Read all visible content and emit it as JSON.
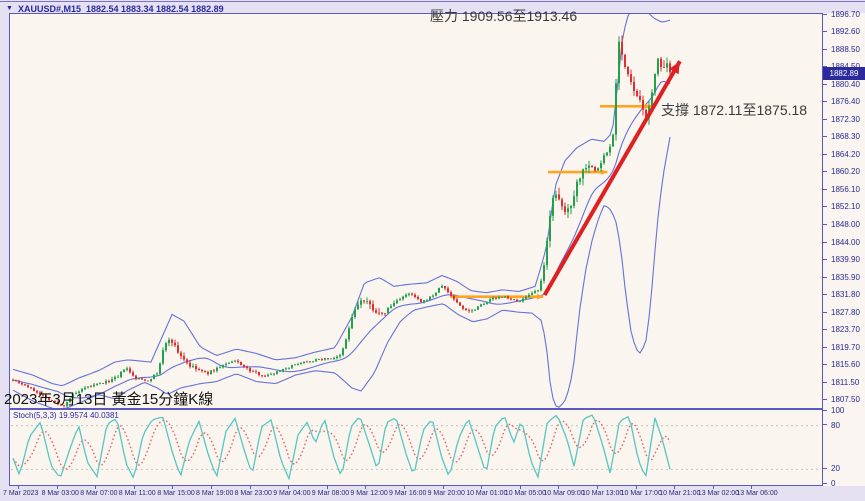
{
  "header": {
    "symbol_label": "XAUUSD#,M15",
    "ohlc_text": "1882.54 1883.34 1882.54 1882.89"
  },
  "colors": {
    "bull": "#22A04A",
    "bear": "#DD2F2F",
    "bollinger": "#6672D8",
    "stoch_k": "#58C6C0",
    "stoch_d": "#E06868",
    "stoch_level": "#C8C4BE",
    "orange": "#FFA420",
    "trend_red": "#E02020",
    "axis_text": "#2A2A8E",
    "badge_bg": "#2B2B9E",
    "plot_bg": "#FBF5EF"
  },
  "chart_data": {
    "type": "candlestick",
    "symbol": "XAUUSD#",
    "timeframe": "M15",
    "indicators": [
      "Bollinger Bands",
      "Stochastic(5,3,3)"
    ],
    "ohlc_header": [
      1882.54,
      1883.34,
      1882.54,
      1882.89
    ],
    "visible_price_range": [
      1807.5,
      1896.7
    ],
    "price_axis": {
      "current_price": "1882.89",
      "ticks": [
        1896.7,
        1892.6,
        1888.5,
        1884.5,
        1880.4,
        1876.4,
        1872.3,
        1868.3,
        1864.2,
        1860.2,
        1856.1,
        1852.1,
        1848.0,
        1844.0,
        1839.9,
        1835.9,
        1831.8,
        1827.8,
        1823.7,
        1819.7,
        1815.6,
        1811.5,
        1807.5
      ]
    },
    "time_axis": {
      "labels": [
        "7 Mar 2023",
        "8 Mar 03:00",
        "8 Mar 07:00",
        "8 Mar 11:00",
        "8 Mar 15:00",
        "8 Mar 19:00",
        "8 Mar 23:00",
        "9 Mar 04:00",
        "9 Mar 08:00",
        "9 Mar 12:00",
        "9 Mar 16:00",
        "9 Mar 20:00",
        "10 Mar 01:00",
        "10 Mar 05:00",
        "10 Mar 09:00",
        "10 Mar 13:00",
        "10 Mar 17:00",
        "10 Mar 21:00",
        "13 Mar 02:00",
        "13 Mar 06:00"
      ]
    },
    "price_path": [
      [
        0.0,
        1812.5
      ],
      [
        0.02,
        1811.0
      ],
      [
        0.045,
        1808.8
      ],
      [
        0.068,
        1806.8
      ],
      [
        0.076,
        1806.2
      ],
      [
        0.09,
        1808.8
      ],
      [
        0.115,
        1810.8
      ],
      [
        0.14,
        1811.8
      ],
      [
        0.16,
        1813.0
      ],
      [
        0.171,
        1815.3
      ],
      [
        0.185,
        1812.8
      ],
      [
        0.205,
        1812.2
      ],
      [
        0.22,
        1814.0
      ],
      [
        0.229,
        1819.5
      ],
      [
        0.239,
        1822.3
      ],
      [
        0.25,
        1819.0
      ],
      [
        0.27,
        1815.5
      ],
      [
        0.295,
        1813.8
      ],
      [
        0.32,
        1815.8
      ],
      [
        0.34,
        1816.8
      ],
      [
        0.36,
        1814.5
      ],
      [
        0.385,
        1813.2
      ],
      [
        0.41,
        1814.8
      ],
      [
        0.44,
        1816.5
      ],
      [
        0.47,
        1817.2
      ],
      [
        0.497,
        1817.6
      ],
      [
        0.505,
        1820.5
      ],
      [
        0.516,
        1827.0
      ],
      [
        0.528,
        1830.8
      ],
      [
        0.545,
        1829.5
      ],
      [
        0.56,
        1827.0
      ],
      [
        0.572,
        1829.0
      ],
      [
        0.588,
        1831.2
      ],
      [
        0.605,
        1832.3
      ],
      [
        0.622,
        1830.2
      ],
      [
        0.64,
        1832.0
      ],
      [
        0.653,
        1834.2
      ],
      [
        0.667,
        1831.8
      ],
      [
        0.683,
        1829.0
      ],
      [
        0.697,
        1828.2
      ],
      [
        0.712,
        1829.8
      ],
      [
        0.73,
        1831.2
      ],
      [
        0.75,
        1831.6
      ],
      [
        0.768,
        1830.4
      ],
      [
        0.785,
        1831.8
      ],
      [
        0.8,
        1833.2
      ],
      [
        0.806,
        1836.0
      ],
      [
        0.812,
        1843.0
      ],
      [
        0.818,
        1852.0
      ],
      [
        0.823,
        1855.8
      ],
      [
        0.832,
        1853.0
      ],
      [
        0.842,
        1850.8
      ],
      [
        0.85,
        1853.5
      ],
      [
        0.858,
        1857.8
      ],
      [
        0.868,
        1861.0
      ],
      [
        0.875,
        1862.8
      ],
      [
        0.885,
        1860.5
      ],
      [
        0.893,
        1861.8
      ],
      [
        0.9,
        1864.3
      ],
      [
        0.908,
        1865.8
      ],
      [
        0.913,
        1869.0
      ],
      [
        0.917,
        1878.0
      ],
      [
        0.921,
        1892.5
      ],
      [
        0.925,
        1889.0
      ],
      [
        0.93,
        1885.5
      ],
      [
        0.937,
        1882.0
      ],
      [
        0.944,
        1879.5
      ],
      [
        0.952,
        1877.0
      ],
      [
        0.96,
        1874.5
      ],
      [
        0.964,
        1873.5
      ],
      [
        0.97,
        1875.5
      ],
      [
        0.977,
        1883.0
      ],
      [
        0.98,
        1888.3
      ],
      [
        0.985,
        1885.0
      ],
      [
        0.99,
        1883.5
      ],
      [
        0.995,
        1885.0
      ],
      [
        1.0,
        1882.9
      ]
    ],
    "bollinger_upper": [
      [
        0.0,
        1814.8
      ],
      [
        0.03,
        1813.5
      ],
      [
        0.06,
        1811.5
      ],
      [
        0.075,
        1811.0
      ],
      [
        0.1,
        1812.8
      ],
      [
        0.13,
        1814.5
      ],
      [
        0.155,
        1816.5
      ],
      [
        0.175,
        1817.0
      ],
      [
        0.21,
        1816.5
      ],
      [
        0.229,
        1823.0
      ],
      [
        0.242,
        1827.5
      ],
      [
        0.26,
        1826.0
      ],
      [
        0.285,
        1820.0
      ],
      [
        0.31,
        1818.0
      ],
      [
        0.34,
        1819.5
      ],
      [
        0.37,
        1818.5
      ],
      [
        0.4,
        1817.0
      ],
      [
        0.43,
        1817.5
      ],
      [
        0.46,
        1818.8
      ],
      [
        0.49,
        1819.8
      ],
      [
        0.516,
        1827.0
      ],
      [
        0.535,
        1834.8
      ],
      [
        0.558,
        1836.0
      ],
      [
        0.58,
        1834.0
      ],
      [
        0.605,
        1834.5
      ],
      [
        0.63,
        1834.8
      ],
      [
        0.653,
        1836.5
      ],
      [
        0.675,
        1835.2
      ],
      [
        0.697,
        1833.0
      ],
      [
        0.72,
        1832.5
      ],
      [
        0.745,
        1833.2
      ],
      [
        0.77,
        1832.8
      ],
      [
        0.795,
        1834.0
      ],
      [
        0.812,
        1843.0
      ],
      [
        0.825,
        1857.0
      ],
      [
        0.84,
        1863.0
      ],
      [
        0.858,
        1866.0
      ],
      [
        0.88,
        1868.0
      ],
      [
        0.9,
        1867.5
      ],
      [
        0.912,
        1869.5
      ],
      [
        0.92,
        1880.0
      ],
      [
        0.928,
        1892.0
      ],
      [
        0.938,
        1897.5
      ],
      [
        0.95,
        1898.8
      ],
      [
        0.962,
        1898.0
      ],
      [
        0.975,
        1896.0
      ],
      [
        0.988,
        1895.0
      ],
      [
        1.0,
        1895.5
      ]
    ],
    "bollinger_lower": [
      [
        0.0,
        1810.0
      ],
      [
        0.03,
        1807.5
      ],
      [
        0.06,
        1805.8
      ],
      [
        0.075,
        1805.5
      ],
      [
        0.1,
        1807.0
      ],
      [
        0.13,
        1809.0
      ],
      [
        0.155,
        1808.0
      ],
      [
        0.175,
        1810.0
      ],
      [
        0.2,
        1811.8
      ],
      [
        0.22,
        1810.5
      ],
      [
        0.235,
        1809.0
      ],
      [
        0.255,
        1810.5
      ],
      [
        0.285,
        1811.5
      ],
      [
        0.31,
        1812.0
      ],
      [
        0.34,
        1813.8
      ],
      [
        0.37,
        1812.0
      ],
      [
        0.4,
        1811.5
      ],
      [
        0.43,
        1813.5
      ],
      [
        0.46,
        1814.5
      ],
      [
        0.49,
        1814.0
      ],
      [
        0.505,
        1812.0
      ],
      [
        0.516,
        1810.5
      ],
      [
        0.53,
        1809.8
      ],
      [
        0.55,
        1814.0
      ],
      [
        0.57,
        1821.0
      ],
      [
        0.59,
        1826.0
      ],
      [
        0.61,
        1828.5
      ],
      [
        0.632,
        1829.3
      ],
      [
        0.655,
        1830.0
      ],
      [
        0.677,
        1827.5
      ],
      [
        0.7,
        1825.8
      ],
      [
        0.722,
        1826.5
      ],
      [
        0.745,
        1828.5
      ],
      [
        0.77,
        1828.0
      ],
      [
        0.79,
        1827.8
      ],
      [
        0.805,
        1826.0
      ],
      [
        0.812,
        1820.0
      ],
      [
        0.818,
        1811.0
      ],
      [
        0.824,
        1806.5
      ],
      [
        0.832,
        1806.0
      ],
      [
        0.842,
        1808.0
      ],
      [
        0.852,
        1814.0
      ],
      [
        0.862,
        1828.0
      ],
      [
        0.872,
        1838.0
      ],
      [
        0.882,
        1845.0
      ],
      [
        0.892,
        1850.0
      ],
      [
        0.9,
        1852.8
      ],
      [
        0.908,
        1852.0
      ],
      [
        0.917,
        1849.5
      ],
      [
        0.925,
        1843.0
      ],
      [
        0.932,
        1833.0
      ],
      [
        0.94,
        1824.0
      ],
      [
        0.948,
        1819.5
      ],
      [
        0.955,
        1818.5
      ],
      [
        0.963,
        1821.0
      ],
      [
        0.97,
        1829.0
      ],
      [
        0.977,
        1842.0
      ],
      [
        0.983,
        1852.0
      ],
      [
        0.99,
        1860.0
      ],
      [
        1.0,
        1868.5
      ]
    ],
    "stochastic": {
      "label": "Stoch(5,3,3)",
      "values": "19.9574 40.0381",
      "range": [
        0,
        100
      ],
      "levels": [
        80,
        20
      ],
      "axis_ticks": [
        100,
        80,
        20,
        0
      ],
      "k_path": [
        [
          0.0,
          35
        ],
        [
          0.01,
          12
        ],
        [
          0.025,
          65
        ],
        [
          0.042,
          85
        ],
        [
          0.058,
          25
        ],
        [
          0.072,
          8
        ],
        [
          0.088,
          52
        ],
        [
          0.1,
          80
        ],
        [
          0.113,
          30
        ],
        [
          0.128,
          10
        ],
        [
          0.143,
          82
        ],
        [
          0.158,
          90
        ],
        [
          0.172,
          28
        ],
        [
          0.184,
          7
        ],
        [
          0.198,
          68
        ],
        [
          0.212,
          88
        ],
        [
          0.228,
          92
        ],
        [
          0.243,
          42
        ],
        [
          0.255,
          10
        ],
        [
          0.268,
          58
        ],
        [
          0.283,
          86
        ],
        [
          0.298,
          38
        ],
        [
          0.31,
          9
        ],
        [
          0.324,
          72
        ],
        [
          0.338,
          90
        ],
        [
          0.352,
          46
        ],
        [
          0.364,
          13
        ],
        [
          0.378,
          78
        ],
        [
          0.393,
          88
        ],
        [
          0.408,
          32
        ],
        [
          0.42,
          7
        ],
        [
          0.434,
          68
        ],
        [
          0.448,
          85
        ],
        [
          0.46,
          55
        ],
        [
          0.474,
          90
        ],
        [
          0.488,
          38
        ],
        [
          0.5,
          9
        ],
        [
          0.514,
          78
        ],
        [
          0.528,
          93
        ],
        [
          0.543,
          52
        ],
        [
          0.555,
          18
        ],
        [
          0.568,
          84
        ],
        [
          0.583,
          91
        ],
        [
          0.598,
          42
        ],
        [
          0.61,
          11
        ],
        [
          0.624,
          74
        ],
        [
          0.638,
          89
        ],
        [
          0.652,
          38
        ],
        [
          0.664,
          9
        ],
        [
          0.678,
          62
        ],
        [
          0.693,
          90
        ],
        [
          0.708,
          48
        ],
        [
          0.72,
          14
        ],
        [
          0.733,
          78
        ],
        [
          0.748,
          93
        ],
        [
          0.762,
          56
        ],
        [
          0.774,
          88
        ],
        [
          0.788,
          32
        ],
        [
          0.799,
          9
        ],
        [
          0.813,
          84
        ],
        [
          0.828,
          95
        ],
        [
          0.843,
          62
        ],
        [
          0.854,
          24
        ],
        [
          0.868,
          89
        ],
        [
          0.883,
          95
        ],
        [
          0.898,
          52
        ],
        [
          0.909,
          14
        ],
        [
          0.923,
          86
        ],
        [
          0.938,
          93
        ],
        [
          0.952,
          32
        ],
        [
          0.963,
          9
        ],
        [
          0.977,
          91
        ],
        [
          0.988,
          62
        ],
        [
          1.0,
          20
        ]
      ]
    },
    "annotations": {
      "resistance": {
        "text": "壓力 1909.56至1913.46",
        "zone": [
          1909.56,
          1913.46
        ]
      },
      "support": {
        "text": "支撐 1872.11至1875.18",
        "zone": [
          1872.11,
          1875.18
        ]
      },
      "caption": "2023年3月13日 黃金15分鐘K線",
      "orange_lines": [
        {
          "price": 1831.6,
          "x1": 0.664,
          "x2": 0.805
        },
        {
          "price": 1860.4,
          "x1": 0.812,
          "x2": 0.902
        },
        {
          "price": 1875.6,
          "x1": 0.891,
          "x2": 0.968
        }
      ],
      "trend_arrow": {
        "x1": 0.807,
        "price1": 1832.0,
        "x2": 1.012,
        "price2": 1886.0
      }
    }
  }
}
